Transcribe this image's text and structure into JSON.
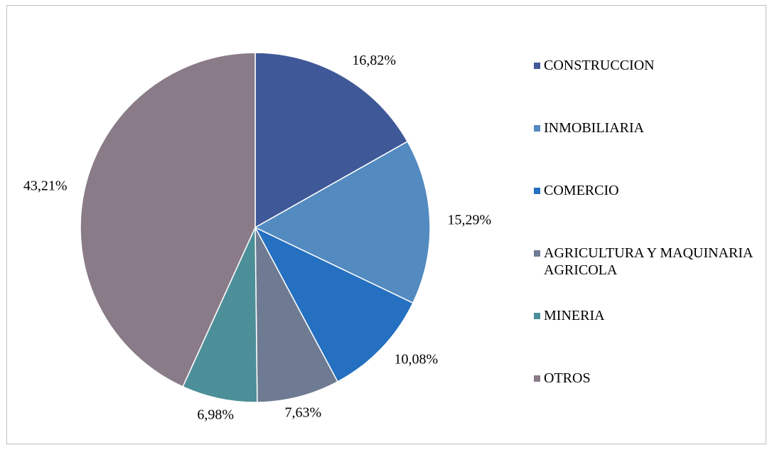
{
  "chart_data": {
    "type": "pie",
    "categories": [
      "CONSTRUCCION",
      "INMOBILIARIA",
      "COMERCIO",
      "AGRICULTURA Y MAQUINARIA AGRICOLA",
      "MINERIA",
      "OTROS"
    ],
    "values": [
      16.82,
      15.29,
      10.08,
      7.63,
      6.98,
      43.21
    ],
    "value_labels": [
      "16,82%",
      "15,29%",
      "10,08%",
      "7,63%",
      "6,98%",
      "43,21%"
    ],
    "colors": [
      "#3f5898",
      "#538ac0",
      "#2570c0",
      "#6e7b92",
      "#4d8f98",
      "#8a7b88"
    ],
    "legend": "right"
  }
}
